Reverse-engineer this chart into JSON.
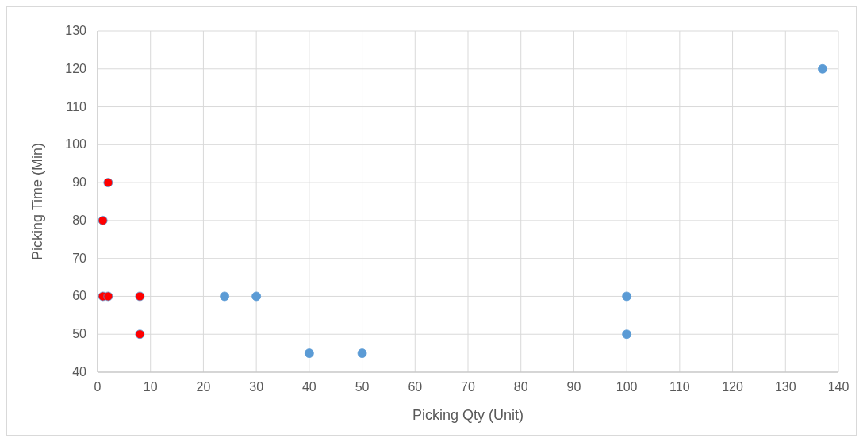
{
  "chart_data": {
    "type": "scatter",
    "xlabel": "Picking Qty (Unit)",
    "ylabel": "Picking Time (Min)",
    "xlim": [
      0,
      140
    ],
    "xticks": [
      0,
      10,
      20,
      30,
      40,
      50,
      60,
      70,
      80,
      90,
      100,
      110,
      120,
      130,
      140
    ],
    "ylim": [
      40,
      130
    ],
    "yticks": [
      40,
      50,
      60,
      70,
      80,
      90,
      100,
      110,
      120,
      130
    ],
    "grid": true,
    "marker": "circle",
    "series": [
      {
        "color": "#5b9bd5",
        "x": [
          24,
          30,
          40,
          50,
          100,
          100,
          137
        ],
        "values": [
          60,
          60,
          45,
          45,
          60,
          50,
          120
        ]
      },
      {
        "color": "#ff0000",
        "x": [
          2,
          1,
          1,
          2,
          8,
          8
        ],
        "values": [
          90,
          80,
          60,
          60,
          60,
          50
        ]
      }
    ]
  }
}
